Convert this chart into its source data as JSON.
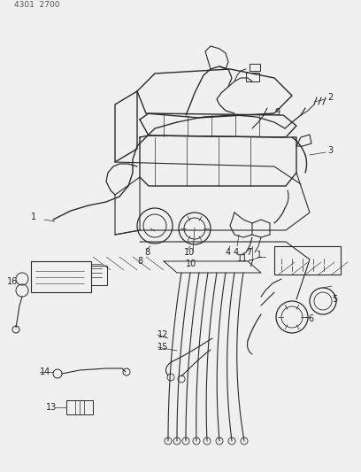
{
  "header": "4301 2700",
  "bg_color": "#f0f0f0",
  "line_color": "#2a2a2a",
  "figsize": [
    4.08,
    5.33
  ],
  "dpi": 100
}
